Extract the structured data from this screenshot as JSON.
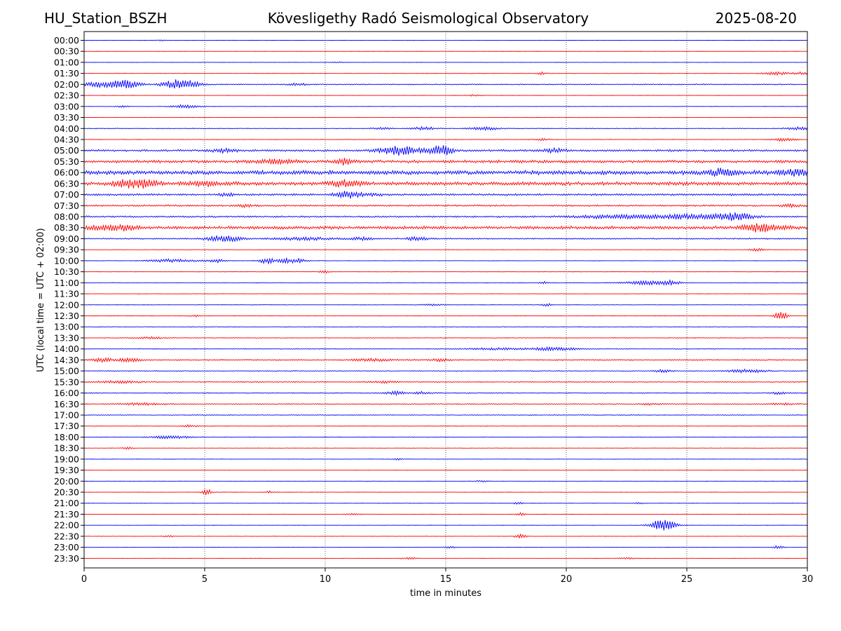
{
  "header": {
    "station": "HU_Station_BSZH",
    "observatory": "Kövesligethy Radó Seismological Observatory",
    "date": "2025-08-20"
  },
  "chart_data": {
    "type": "line",
    "title": "Kövesligethy Radó Seismological Observatory",
    "xlabel": "time in minutes",
    "ylabel": "UTC (local time = UTC + 02:00)",
    "xlim": [
      0,
      30
    ],
    "xticks": [
      0,
      5,
      10,
      15,
      20,
      25,
      30
    ],
    "vgrid": [
      5,
      10,
      15,
      20,
      25
    ],
    "grid": "vertical dotted",
    "colors": {
      "even": "#0000ff",
      "odd": "#ff0000"
    },
    "rows": [
      {
        "label": "00:00",
        "noise": 0.2,
        "events": [
          [
            3.2,
            0.8,
            0.25
          ]
        ]
      },
      {
        "label": "00:30",
        "noise": 0.2,
        "events": []
      },
      {
        "label": "01:00",
        "noise": 0.25,
        "events": [
          [
            10.6,
            1.0,
            0.3
          ]
        ]
      },
      {
        "label": "01:30",
        "noise": 0.45,
        "events": [
          [
            19,
            2,
            0.2
          ],
          [
            28.7,
            2.2,
            0.5
          ],
          [
            29.8,
            1.8,
            0.4
          ]
        ]
      },
      {
        "label": "02:00",
        "noise": 0.8,
        "events": [
          [
            0.5,
            3.5,
            0.8
          ],
          [
            1.7,
            5.5,
            0.6
          ],
          [
            3.7,
            6,
            0.5
          ],
          [
            4.4,
            4.5,
            0.5
          ],
          [
            8.9,
            1.5,
            0.4
          ]
        ]
      },
      {
        "label": "02:30",
        "noise": 0.3,
        "events": [
          [
            16.2,
            1.4,
            0.3
          ]
        ]
      },
      {
        "label": "03:00",
        "noise": 0.3,
        "events": [
          [
            4.2,
            2.5,
            0.6
          ],
          [
            1.6,
            1.2,
            0.3
          ]
        ]
      },
      {
        "label": "03:30",
        "noise": 0.3,
        "events": []
      },
      {
        "label": "04:00",
        "noise": 0.6,
        "events": [
          [
            14.1,
            2.2,
            0.5
          ],
          [
            16.6,
            2.2,
            0.6
          ],
          [
            12.3,
            1.4,
            0.4
          ],
          [
            29.6,
            2,
            0.5
          ]
        ]
      },
      {
        "label": "04:30",
        "noise": 0.5,
        "events": [
          [
            29,
            2.2,
            0.5
          ],
          [
            19,
            1.4,
            0.3
          ]
        ]
      },
      {
        "label": "05:00",
        "noise": 1.6,
        "events": [
          [
            13.1,
            6,
            0.8
          ],
          [
            14.8,
            8,
            0.5
          ],
          [
            5.8,
            2.2,
            0.5
          ],
          [
            19.5,
            2.5,
            0.5
          ]
        ]
      },
      {
        "label": "05:30",
        "noise": 2.2,
        "events": [
          [
            10.8,
            4,
            0.4
          ],
          [
            8,
            2.5,
            0.8
          ]
        ]
      },
      {
        "label": "06:00",
        "noise": 3.2,
        "events": [
          [
            26.5,
            4,
            0.6
          ],
          [
            29.5,
            3,
            0.8
          ]
        ]
      },
      {
        "label": "06:30",
        "noise": 2.8,
        "events": [
          [
            1.7,
            4.5,
            0.6
          ],
          [
            2.6,
            5,
            0.5
          ],
          [
            10.9,
            5,
            0.6
          ],
          [
            5,
            2.5,
            0.8
          ]
        ]
      },
      {
        "label": "07:00",
        "noise": 1.6,
        "events": [
          [
            10.8,
            4.5,
            0.4
          ],
          [
            5.9,
            2,
            0.3
          ],
          [
            11.5,
            2,
            0.8
          ]
        ]
      },
      {
        "label": "07:30",
        "noise": 1.3,
        "events": [
          [
            6.7,
            2,
            0.4
          ],
          [
            29.3,
            1.8,
            0.4
          ]
        ]
      },
      {
        "label": "08:00",
        "noise": 1.3,
        "events": [
          [
            27,
            5,
            0.8
          ],
          [
            25,
            3,
            1.4
          ],
          [
            22,
            2.2,
            1.8
          ]
        ]
      },
      {
        "label": "08:30",
        "noise": 2.4,
        "events": [
          [
            27.8,
            4.5,
            0.6
          ],
          [
            0.8,
            3.5,
            0.6
          ],
          [
            1.8,
            3.5,
            0.5
          ],
          [
            28.5,
            2.5,
            0.8
          ]
        ]
      },
      {
        "label": "09:00",
        "noise": 1.0,
        "events": [
          [
            5.8,
            4.5,
            0.7
          ],
          [
            9,
            2,
            1.2
          ],
          [
            11.5,
            2,
            0.5
          ],
          [
            13.8,
            3,
            0.4
          ]
        ]
      },
      {
        "label": "09:30",
        "noise": 0.4,
        "events": [
          [
            27.9,
            1.8,
            0.3
          ]
        ]
      },
      {
        "label": "10:00",
        "noise": 0.4,
        "events": [
          [
            3.7,
            2.2,
            1.1
          ],
          [
            5.5,
            3,
            0.3
          ],
          [
            7.6,
            4,
            0.35
          ],
          [
            8.4,
            3,
            0.35
          ],
          [
            8.9,
            2.5,
            0.3
          ]
        ]
      },
      {
        "label": "10:30",
        "noise": 0.4,
        "events": [
          [
            10,
            1.5,
            0.3
          ]
        ]
      },
      {
        "label": "11:00",
        "noise": 0.5,
        "events": [
          [
            23.5,
            3,
            1.0
          ],
          [
            19.1,
            2,
            0.2
          ],
          [
            24.4,
            2,
            0.3
          ]
        ]
      },
      {
        "label": "11:30",
        "noise": 0.4,
        "events": []
      },
      {
        "label": "12:00",
        "noise": 0.4,
        "events": [
          [
            19.2,
            2,
            0.2
          ],
          [
            14.5,
            1.2,
            0.5
          ]
        ]
      },
      {
        "label": "12:30",
        "noise": 0.3,
        "events": [
          [
            28.9,
            7,
            0.25
          ],
          [
            4.6,
            1.5,
            0.3
          ]
        ]
      },
      {
        "label": "13:00",
        "noise": 0.5,
        "events": []
      },
      {
        "label": "13:30",
        "noise": 0.6,
        "events": [
          [
            2.8,
            1.4,
            0.6
          ]
        ]
      },
      {
        "label": "14:00",
        "noise": 0.6,
        "events": [
          [
            19.5,
            2.2,
            1.0
          ],
          [
            17,
            1.3,
            1.3
          ]
        ]
      },
      {
        "label": "14:30",
        "noise": 1.0,
        "events": [
          [
            0.8,
            2.5,
            0.4
          ],
          [
            1.9,
            2.8,
            0.4
          ],
          [
            14.8,
            2,
            0.4
          ],
          [
            12,
            1.6,
            0.8
          ]
        ]
      },
      {
        "label": "15:00",
        "noise": 0.6,
        "events": [
          [
            24,
            2,
            0.4
          ],
          [
            27.2,
            2,
            0.6
          ],
          [
            28,
            1.5,
            0.5
          ]
        ]
      },
      {
        "label": "15:30",
        "noise": 0.9,
        "events": [
          [
            1.5,
            1.5,
            0.8
          ],
          [
            12.4,
            1.4,
            0.5
          ]
        ]
      },
      {
        "label": "16:00",
        "noise": 0.8,
        "events": [
          [
            12.9,
            2.2,
            0.4
          ],
          [
            14,
            1.8,
            0.3
          ],
          [
            28.8,
            1.5,
            0.3
          ]
        ]
      },
      {
        "label": "16:30",
        "noise": 0.8,
        "events": [
          [
            2.4,
            1.4,
            1.0
          ],
          [
            23.5,
            1.4,
            0.4
          ],
          [
            29,
            1.3,
            0.5
          ]
        ]
      },
      {
        "label": "17:00",
        "noise": 0.6,
        "events": []
      },
      {
        "label": "17:30",
        "noise": 0.6,
        "events": [
          [
            4.4,
            1.5,
            0.3
          ]
        ]
      },
      {
        "label": "18:00",
        "noise": 0.5,
        "events": [
          [
            3.6,
            2.2,
            0.8
          ]
        ]
      },
      {
        "label": "18:30",
        "noise": 0.3,
        "events": [
          [
            1.8,
            1.8,
            0.25
          ]
        ]
      },
      {
        "label": "19:00",
        "noise": 0.3,
        "events": [
          [
            13,
            1.2,
            0.2
          ]
        ]
      },
      {
        "label": "19:30",
        "noise": 0.3,
        "events": []
      },
      {
        "label": "20:00",
        "noise": 0.3,
        "events": [
          [
            16.5,
            1.2,
            0.25
          ]
        ]
      },
      {
        "label": "20:30",
        "noise": 0.3,
        "events": [
          [
            5.1,
            4.5,
            0.2
          ],
          [
            7.7,
            2,
            0.15
          ]
        ]
      },
      {
        "label": "21:00",
        "noise": 0.3,
        "events": [
          [
            18,
            1.5,
            0.2
          ],
          [
            23,
            1.2,
            0.2
          ]
        ]
      },
      {
        "label": "21:30",
        "noise": 0.3,
        "events": [
          [
            18.1,
            2,
            0.2
          ],
          [
            11.2,
            1.2,
            0.3
          ]
        ]
      },
      {
        "label": "22:00",
        "noise": 0.35,
        "events": [
          [
            24,
            9,
            0.5
          ]
        ]
      },
      {
        "label": "22:30",
        "noise": 0.3,
        "events": [
          [
            18.1,
            3.5,
            0.25
          ],
          [
            3.5,
            1.2,
            0.3
          ]
        ]
      },
      {
        "label": "23:00",
        "noise": 0.25,
        "events": [
          [
            28.8,
            3,
            0.2
          ],
          [
            15.2,
            1.2,
            0.3
          ]
        ]
      },
      {
        "label": "23:30",
        "noise": 0.3,
        "events": [
          [
            13.5,
            1.2,
            0.4
          ],
          [
            22.5,
            1.2,
            0.4
          ]
        ]
      }
    ]
  }
}
